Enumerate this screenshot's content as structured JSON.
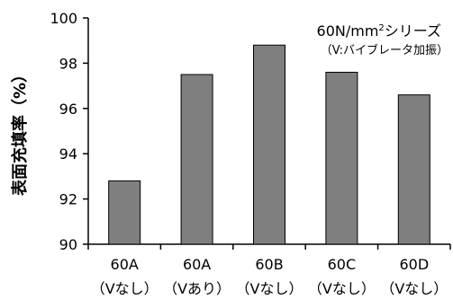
{
  "chart_data": {
    "type": "bar",
    "title": "60N/mm²シリーズ",
    "subtitle": "（V:バイブレータ加振）",
    "ylabel": "表面充填率（%）",
    "xlabel": "",
    "ylim": [
      90,
      100
    ],
    "yticks": [
      "90",
      "92",
      "94",
      "96",
      "98",
      "100"
    ],
    "categories": [
      {
        "line1": "60A",
        "line2": "（Vなし）"
      },
      {
        "line1": "60A",
        "line2": "（Vあり）"
      },
      {
        "line1": "60B",
        "line2": "（Vなし）"
      },
      {
        "line1": "60C",
        "line2": "（Vなし）"
      },
      {
        "line1": "60D",
        "line2": "（Vなし）"
      }
    ],
    "values": [
      92.8,
      97.5,
      98.8,
      97.6,
      96.6
    ],
    "bar_color": "#7f7f7f",
    "grid": false,
    "legend": "none"
  }
}
